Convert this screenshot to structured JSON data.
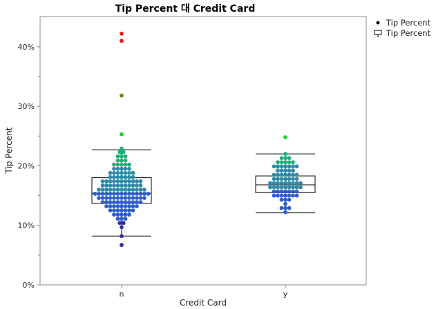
{
  "chart_data": {
    "type": "scatter",
    "title": "Tip Percent 대 Credit Card",
    "xlabel": "Credit Card",
    "ylabel": "Tip Percent",
    "categories": [
      "n",
      "y"
    ],
    "ylim": [
      0,
      45
    ],
    "yticks": [
      {
        "value": 0,
        "label": "0%"
      },
      {
        "value": 10,
        "label": "10%"
      },
      {
        "value": 20,
        "label": "20%"
      },
      {
        "value": 30,
        "label": "30%"
      },
      {
        "value": 40,
        "label": "40%"
      }
    ],
    "grid": false,
    "legend_position": "top-right",
    "legend": [
      {
        "symbol": "dot",
        "label": "Tip Percent"
      },
      {
        "symbol": "box",
        "label": "Tip Percent"
      }
    ],
    "colors": {
      "low": "#2a2f9e",
      "mid_low": "#2f5ec9",
      "mid": "#2e8aa6",
      "mid_high": "#1fb07a",
      "high": "#22d22a",
      "very_high": "#8a7a10",
      "extreme": "#e61c1c",
      "box": "#000000",
      "frame": "#888888"
    },
    "boxplots": [
      {
        "category": "n",
        "whisker_low": 8.2,
        "q1": 13.7,
        "median": 15.4,
        "q3": 18.0,
        "whisker_high": 22.7
      },
      {
        "category": "y",
        "whisker_low": 12.1,
        "q1": 15.5,
        "median": 16.8,
        "q3": 18.3,
        "whisker_high": 22.0
      }
    ],
    "series": [
      {
        "category": "n",
        "points": [
          {
            "value": 6.7,
            "count": 1
          },
          {
            "value": 8.2,
            "count": 1
          },
          {
            "value": 9.7,
            "count": 1
          },
          {
            "value": 10.4,
            "count": 2
          },
          {
            "value": 11.1,
            "count": 3
          },
          {
            "value": 11.8,
            "count": 5
          },
          {
            "value": 12.5,
            "count": 7
          },
          {
            "value": 13.2,
            "count": 9
          },
          {
            "value": 13.9,
            "count": 11
          },
          {
            "value": 14.6,
            "count": 13
          },
          {
            "value": 15.3,
            "count": 15
          },
          {
            "value": 16.0,
            "count": 13
          },
          {
            "value": 16.7,
            "count": 11
          },
          {
            "value": 17.4,
            "count": 11
          },
          {
            "value": 18.1,
            "count": 7
          },
          {
            "value": 18.8,
            "count": 7
          },
          {
            "value": 19.5,
            "count": 5
          },
          {
            "value": 20.2,
            "count": 5
          },
          {
            "value": 20.9,
            "count": 3
          },
          {
            "value": 21.6,
            "count": 3
          },
          {
            "value": 22.3,
            "count": 2
          },
          {
            "value": 22.9,
            "count": 1
          },
          {
            "value": 25.3,
            "count": 1
          },
          {
            "value": 31.8,
            "count": 1
          },
          {
            "value": 41.0,
            "count": 1
          },
          {
            "value": 42.2,
            "count": 1
          }
        ]
      },
      {
        "category": "y",
        "points": [
          {
            "value": 12.2,
            "count": 1
          },
          {
            "value": 12.9,
            "count": 3
          },
          {
            "value": 13.6,
            "count": 1
          },
          {
            "value": 14.3,
            "count": 3
          },
          {
            "value": 15.0,
            "count": 7
          },
          {
            "value": 15.7,
            "count": 7
          },
          {
            "value": 16.4,
            "count": 9
          },
          {
            "value": 17.1,
            "count": 9
          },
          {
            "value": 17.8,
            "count": 7
          },
          {
            "value": 18.5,
            "count": 7
          },
          {
            "value": 19.2,
            "count": 5
          },
          {
            "value": 19.9,
            "count": 7
          },
          {
            "value": 20.6,
            "count": 5
          },
          {
            "value": 21.3,
            "count": 3
          },
          {
            "value": 22.0,
            "count": 1
          },
          {
            "value": 24.8,
            "count": 1
          }
        ]
      }
    ]
  }
}
